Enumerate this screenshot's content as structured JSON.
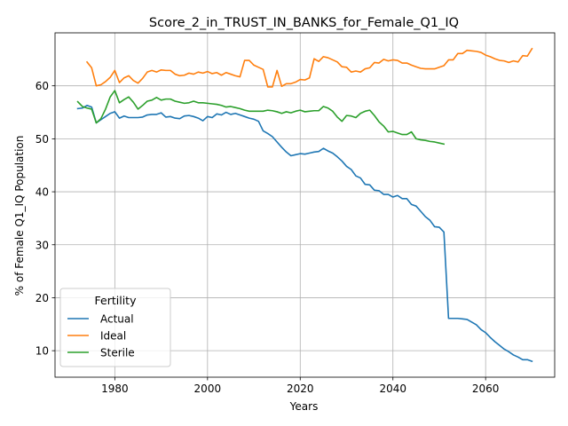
{
  "chart_data": {
    "type": "line",
    "title": "Score_2_in_TRUST_IN_BANKS_for_Female_Q1_IQ",
    "xlabel": "Years",
    "ylabel": "% of Female Q1_IQ Population",
    "xlim": [
      1967.1,
      2074.9
    ],
    "ylim": [
      5.0,
      70.0
    ],
    "xticks": [
      1980,
      2000,
      2020,
      2040,
      2060
    ],
    "yticks": [
      10,
      20,
      30,
      40,
      50,
      60
    ],
    "grid": true,
    "legend": {
      "title": "Fertility",
      "position": "lower-left"
    },
    "series": [
      {
        "name": "Actual",
        "color": "#1f77b4",
        "points": [
          [
            1972,
            55.7
          ],
          [
            1973,
            55.8
          ],
          [
            1974,
            56.3
          ],
          [
            1975,
            56.0
          ],
          [
            1976,
            53.0
          ],
          [
            1977,
            53.6
          ],
          [
            1978,
            54.2
          ],
          [
            1979,
            54.8
          ],
          [
            1980,
            55.1
          ],
          [
            1981,
            53.9
          ],
          [
            1982,
            54.3
          ],
          [
            1983,
            54.0
          ],
          [
            1984,
            54.0
          ],
          [
            1985,
            54.0
          ],
          [
            1986,
            54.1
          ],
          [
            1987,
            54.5
          ],
          [
            1988,
            54.6
          ],
          [
            1989,
            54.6
          ],
          [
            1990,
            54.9
          ],
          [
            1991,
            54.1
          ],
          [
            1992,
            54.2
          ],
          [
            1993,
            53.9
          ],
          [
            1994,
            53.8
          ],
          [
            1995,
            54.3
          ],
          [
            1996,
            54.4
          ],
          [
            1997,
            54.2
          ],
          [
            1998,
            53.9
          ],
          [
            1999,
            53.4
          ],
          [
            2000,
            54.2
          ],
          [
            2001,
            54.0
          ],
          [
            2002,
            54.7
          ],
          [
            2003,
            54.5
          ],
          [
            2004,
            55.0
          ],
          [
            2005,
            54.6
          ],
          [
            2006,
            54.8
          ],
          [
            2007,
            54.5
          ],
          [
            2008,
            54.2
          ],
          [
            2009,
            53.9
          ],
          [
            2010,
            53.7
          ],
          [
            2011,
            53.3
          ],
          [
            2012,
            51.5
          ],
          [
            2013,
            51.0
          ],
          [
            2014,
            50.4
          ],
          [
            2015,
            49.4
          ],
          [
            2016,
            48.4
          ],
          [
            2017,
            47.5
          ],
          [
            2018,
            46.8
          ],
          [
            2019,
            47.0
          ],
          [
            2020,
            47.2
          ],
          [
            2021,
            47.1
          ],
          [
            2022,
            47.3
          ],
          [
            2023,
            47.5
          ],
          [
            2024,
            47.6
          ],
          [
            2025,
            48.2
          ],
          [
            2026,
            47.7
          ],
          [
            2027,
            47.3
          ],
          [
            2028,
            46.6
          ],
          [
            2029,
            45.8
          ],
          [
            2030,
            44.8
          ],
          [
            2031,
            44.2
          ],
          [
            2032,
            43.0
          ],
          [
            2033,
            42.6
          ],
          [
            2034,
            41.4
          ],
          [
            2035,
            41.3
          ],
          [
            2036,
            40.3
          ],
          [
            2037,
            40.2
          ],
          [
            2038,
            39.5
          ],
          [
            2039,
            39.5
          ],
          [
            2040,
            39.0
          ],
          [
            2041,
            39.3
          ],
          [
            2042,
            38.7
          ],
          [
            2043,
            38.7
          ],
          [
            2044,
            37.6
          ],
          [
            2045,
            37.3
          ],
          [
            2046,
            36.3
          ],
          [
            2047,
            35.3
          ],
          [
            2048,
            34.6
          ],
          [
            2049,
            33.4
          ],
          [
            2050,
            33.3
          ],
          [
            2051,
            32.4
          ],
          [
            2052,
            16.1
          ],
          [
            2053,
            16.1
          ],
          [
            2054,
            16.1
          ],
          [
            2055,
            16.0
          ],
          [
            2056,
            15.9
          ],
          [
            2057,
            15.4
          ],
          [
            2058,
            14.9
          ],
          [
            2059,
            14.0
          ],
          [
            2060,
            13.4
          ],
          [
            2061,
            12.5
          ],
          [
            2062,
            11.7
          ],
          [
            2063,
            11.0
          ],
          [
            2064,
            10.3
          ],
          [
            2065,
            9.8
          ],
          [
            2066,
            9.2
          ],
          [
            2067,
            8.8
          ],
          [
            2068,
            8.3
          ],
          [
            2069,
            8.3
          ],
          [
            2070,
            8.0
          ]
        ]
      },
      {
        "name": "Ideal",
        "color": "#ff7f0e",
        "points": [
          [
            1974,
            64.5
          ],
          [
            1975,
            63.4
          ],
          [
            1976,
            60.0
          ],
          [
            1977,
            60.2
          ],
          [
            1978,
            60.8
          ],
          [
            1979,
            61.6
          ],
          [
            1980,
            62.9
          ],
          [
            1981,
            60.6
          ],
          [
            1982,
            61.5
          ],
          [
            1983,
            61.9
          ],
          [
            1984,
            61.0
          ],
          [
            1985,
            60.5
          ],
          [
            1986,
            61.4
          ],
          [
            1987,
            62.6
          ],
          [
            1988,
            62.9
          ],
          [
            1989,
            62.6
          ],
          [
            1990,
            63.0
          ],
          [
            1991,
            62.9
          ],
          [
            1992,
            62.9
          ],
          [
            1993,
            62.2
          ],
          [
            1994,
            61.9
          ],
          [
            1995,
            62.0
          ],
          [
            1996,
            62.4
          ],
          [
            1997,
            62.2
          ],
          [
            1998,
            62.6
          ],
          [
            1999,
            62.4
          ],
          [
            2000,
            62.7
          ],
          [
            2001,
            62.3
          ],
          [
            2002,
            62.5
          ],
          [
            2003,
            62.0
          ],
          [
            2004,
            62.5
          ],
          [
            2005,
            62.2
          ],
          [
            2006,
            61.9
          ],
          [
            2007,
            61.7
          ],
          [
            2008,
            64.8
          ],
          [
            2009,
            64.8
          ],
          [
            2010,
            63.9
          ],
          [
            2011,
            63.5
          ],
          [
            2012,
            63.1
          ],
          [
            2013,
            59.8
          ],
          [
            2014,
            59.8
          ],
          [
            2015,
            62.9
          ],
          [
            2016,
            59.9
          ],
          [
            2017,
            60.4
          ],
          [
            2018,
            60.4
          ],
          [
            2019,
            60.7
          ],
          [
            2020,
            61.2
          ],
          [
            2021,
            61.1
          ],
          [
            2022,
            61.5
          ],
          [
            2023,
            65.1
          ],
          [
            2024,
            64.6
          ],
          [
            2025,
            65.5
          ],
          [
            2026,
            65.3
          ],
          [
            2027,
            64.9
          ],
          [
            2028,
            64.5
          ],
          [
            2029,
            63.6
          ],
          [
            2030,
            63.5
          ],
          [
            2031,
            62.6
          ],
          [
            2032,
            62.8
          ],
          [
            2033,
            62.6
          ],
          [
            2034,
            63.2
          ],
          [
            2035,
            63.4
          ],
          [
            2036,
            64.4
          ],
          [
            2037,
            64.3
          ],
          [
            2038,
            65.0
          ],
          [
            2039,
            64.7
          ],
          [
            2040,
            64.9
          ],
          [
            2041,
            64.8
          ],
          [
            2042,
            64.3
          ],
          [
            2043,
            64.3
          ],
          [
            2044,
            63.9
          ],
          [
            2045,
            63.6
          ],
          [
            2046,
            63.3
          ],
          [
            2047,
            63.2
          ],
          [
            2048,
            63.2
          ],
          [
            2049,
            63.2
          ],
          [
            2050,
            63.5
          ],
          [
            2051,
            63.8
          ],
          [
            2052,
            64.9
          ],
          [
            2053,
            64.9
          ],
          [
            2054,
            66.1
          ],
          [
            2055,
            66.1
          ],
          [
            2056,
            66.7
          ],
          [
            2057,
            66.6
          ],
          [
            2058,
            66.5
          ],
          [
            2059,
            66.3
          ],
          [
            2060,
            65.8
          ],
          [
            2061,
            65.5
          ],
          [
            2062,
            65.1
          ],
          [
            2063,
            64.8
          ],
          [
            2064,
            64.7
          ],
          [
            2065,
            64.4
          ],
          [
            2066,
            64.7
          ],
          [
            2067,
            64.5
          ],
          [
            2068,
            65.7
          ],
          [
            2069,
            65.6
          ],
          [
            2070,
            67.0
          ]
        ]
      },
      {
        "name": "Sterile",
        "color": "#2ca02c",
        "points": [
          [
            1972,
            57.0
          ],
          [
            1973,
            56.1
          ],
          [
            1974,
            55.8
          ],
          [
            1975,
            55.6
          ],
          [
            1976,
            53.0
          ],
          [
            1977,
            53.8
          ],
          [
            1978,
            55.6
          ],
          [
            1979,
            57.9
          ],
          [
            1980,
            59.1
          ],
          [
            1981,
            56.8
          ],
          [
            1982,
            57.4
          ],
          [
            1983,
            57.9
          ],
          [
            1984,
            56.9
          ],
          [
            1985,
            55.6
          ],
          [
            1986,
            56.3
          ],
          [
            1987,
            57.1
          ],
          [
            1988,
            57.3
          ],
          [
            1989,
            57.8
          ],
          [
            1990,
            57.3
          ],
          [
            1991,
            57.5
          ],
          [
            1992,
            57.5
          ],
          [
            1993,
            57.1
          ],
          [
            1994,
            56.9
          ],
          [
            1995,
            56.7
          ],
          [
            1996,
            56.8
          ],
          [
            1997,
            57.1
          ],
          [
            1998,
            56.8
          ],
          [
            1999,
            56.8
          ],
          [
            2000,
            56.7
          ],
          [
            2001,
            56.6
          ],
          [
            2002,
            56.5
          ],
          [
            2003,
            56.3
          ],
          [
            2004,
            56.0
          ],
          [
            2005,
            56.1
          ],
          [
            2006,
            55.9
          ],
          [
            2007,
            55.7
          ],
          [
            2008,
            55.4
          ],
          [
            2009,
            55.2
          ],
          [
            2010,
            55.2
          ],
          [
            2011,
            55.2
          ],
          [
            2012,
            55.2
          ],
          [
            2013,
            55.4
          ],
          [
            2014,
            55.3
          ],
          [
            2015,
            55.1
          ],
          [
            2016,
            54.8
          ],
          [
            2017,
            55.1
          ],
          [
            2018,
            54.9
          ],
          [
            2019,
            55.2
          ],
          [
            2020,
            55.4
          ],
          [
            2021,
            55.1
          ],
          [
            2022,
            55.2
          ],
          [
            2023,
            55.3
          ],
          [
            2024,
            55.3
          ],
          [
            2025,
            56.1
          ],
          [
            2026,
            55.8
          ],
          [
            2027,
            55.2
          ],
          [
            2028,
            54.1
          ],
          [
            2029,
            53.3
          ],
          [
            2030,
            54.4
          ],
          [
            2031,
            54.3
          ],
          [
            2032,
            54.0
          ],
          [
            2033,
            54.8
          ],
          [
            2034,
            55.2
          ],
          [
            2035,
            55.4
          ],
          [
            2036,
            54.4
          ],
          [
            2037,
            53.2
          ],
          [
            2038,
            52.4
          ],
          [
            2039,
            51.3
          ],
          [
            2040,
            51.4
          ],
          [
            2041,
            51.1
          ],
          [
            2042,
            50.8
          ],
          [
            2043,
            50.8
          ],
          [
            2044,
            51.3
          ],
          [
            2045,
            50.0
          ],
          [
            2046,
            49.8
          ],
          [
            2047,
            49.7
          ],
          [
            2048,
            49.5
          ],
          [
            2049,
            49.4
          ],
          [
            2050,
            49.2
          ],
          [
            2051,
            49.0
          ]
        ]
      }
    ]
  }
}
